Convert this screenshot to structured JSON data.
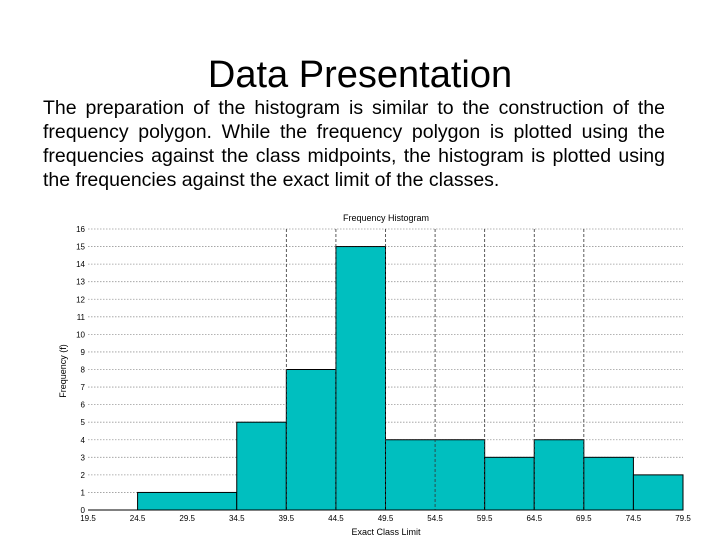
{
  "slide": {
    "title": "Data Presentation",
    "body": "The preparation of the histogram is similar to the construction of the frequency polygon. While the frequency polygon is plotted using the frequencies against the class midpoints, the histogram is plotted using the frequencies against the exact limit of the classes."
  },
  "chart_data": {
    "type": "bar",
    "title": "Frequency Histogram",
    "xlabel": "Exact Class Limit",
    "ylabel": "Frequency (f)",
    "x_ticks": [
      "19.5",
      "24.5",
      "29.5",
      "34.5",
      "39.5",
      "44.5",
      "49.5",
      "54.5",
      "59.5",
      "64.5",
      "69.5",
      "74.5",
      "79.5"
    ],
    "bins": [
      {
        "from": 19.5,
        "to": 24.5,
        "frequency": 0
      },
      {
        "from": 24.5,
        "to": 34.5,
        "frequency": 1
      },
      {
        "from": 34.5,
        "to": 39.5,
        "frequency": 5
      },
      {
        "from": 39.5,
        "to": 44.5,
        "frequency": 8
      },
      {
        "from": 44.5,
        "to": 49.5,
        "frequency": 15
      },
      {
        "from": 49.5,
        "to": 59.5,
        "frequency": 4
      },
      {
        "from": 59.5,
        "to": 64.5,
        "frequency": 3
      },
      {
        "from": 64.5,
        "to": 69.5,
        "frequency": 4
      },
      {
        "from": 69.5,
        "to": 74.5,
        "frequency": 3
      },
      {
        "from": 74.5,
        "to": 79.5,
        "frequency": 2
      }
    ],
    "y_ticks": [
      0,
      1,
      2,
      3,
      4,
      5,
      6,
      7,
      8,
      9,
      10,
      11,
      12,
      13,
      14,
      15,
      16
    ],
    "ylim": [
      0,
      16
    ],
    "xlim": [
      19.5,
      79.5
    ],
    "vertical_lines_at": [
      39.5,
      44.5,
      49.5,
      54.5,
      59.5,
      64.5,
      69.5
    ],
    "grid": true,
    "bar_color": "#00bfbf",
    "edge_color": "#000000"
  }
}
